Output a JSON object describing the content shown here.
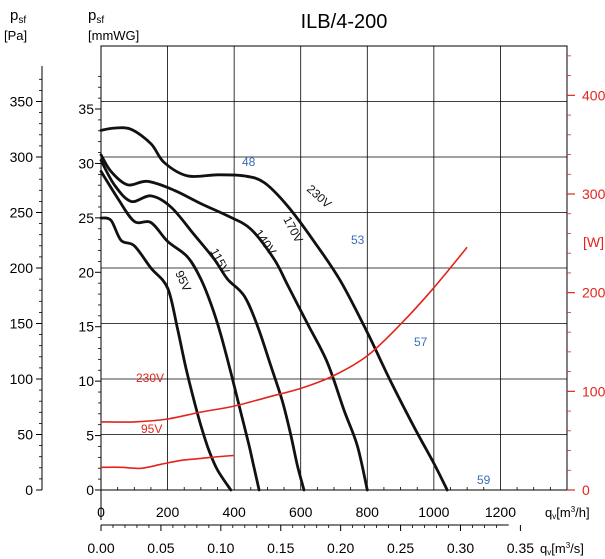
{
  "chart_data": {
    "type": "line",
    "title": "ILB/4-200",
    "axes": {
      "left_outer": {
        "label_main": "p",
        "label_sub": "sf",
        "unit": "[Pa]",
        "ticks": [
          0,
          50,
          100,
          150,
          200,
          250,
          300,
          350
        ],
        "range": [
          0,
          350
        ]
      },
      "left_inner": {
        "label_main": "p",
        "label_sub": "sf",
        "unit": "[mmWG]",
        "ticks": [
          0,
          5,
          10,
          15,
          20,
          25,
          30,
          35
        ]
      },
      "x_main": {
        "label_main": "q",
        "label_sub": "v",
        "unit_prefix": "[m",
        "unit_sup": "3",
        "unit_suffix": "/h]",
        "ticks": [
          0,
          200,
          400,
          600,
          800,
          1000,
          1200
        ],
        "range": [
          0,
          1200
        ]
      },
      "x_secondary": {
        "label_main": "q",
        "label_sub": "v",
        "unit_prefix": "[m",
        "unit_sup": "3",
        "unit_suffix": "/s]",
        "ticks": [
          "0.00",
          "0.05",
          "0.10",
          "0.15",
          "0.20",
          "0.25",
          "0.30",
          "0.35"
        ]
      },
      "right_power": {
        "unit": "[W]",
        "ticks": [
          0,
          100,
          200,
          300,
          400
        ]
      }
    },
    "pressure_series": [
      {
        "name": "230V",
        "points": [
          [
            0,
            324
          ],
          [
            40,
            326
          ],
          [
            90,
            325
          ],
          [
            150,
            312
          ],
          [
            190,
            295
          ],
          [
            260,
            283
          ],
          [
            350,
            284
          ],
          [
            430,
            283
          ],
          [
            490,
            277
          ],
          [
            560,
            256
          ],
          [
            640,
            224
          ],
          [
            720,
            188
          ],
          [
            800,
            142
          ],
          [
            870,
            98
          ],
          [
            940,
            57
          ],
          [
            1000,
            24
          ],
          [
            1040,
            0
          ]
        ]
      },
      {
        "name": "170V",
        "points": [
          [
            0,
            302
          ],
          [
            30,
            287
          ],
          [
            80,
            275
          ],
          [
            140,
            278
          ],
          [
            220,
            270
          ],
          [
            300,
            258
          ],
          [
            380,
            247
          ],
          [
            450,
            235
          ],
          [
            520,
            208
          ],
          [
            560,
            185
          ],
          [
            620,
            150
          ],
          [
            680,
            115
          ],
          [
            730,
            72
          ],
          [
            770,
            40
          ],
          [
            800,
            0
          ]
        ]
      },
      {
        "name": "140V",
        "points": [
          [
            0,
            297
          ],
          [
            40,
            275
          ],
          [
            90,
            260
          ],
          [
            150,
            265
          ],
          [
            210,
            255
          ],
          [
            280,
            230
          ],
          [
            340,
            208
          ],
          [
            380,
            190
          ],
          [
            430,
            175
          ],
          [
            470,
            148
          ],
          [
            510,
            112
          ],
          [
            545,
            80
          ],
          [
            570,
            50
          ],
          [
            590,
            22
          ],
          [
            610,
            0
          ]
        ]
      },
      {
        "name": "115V",
        "points": [
          [
            0,
            287
          ],
          [
            50,
            263
          ],
          [
            100,
            242
          ],
          [
            150,
            241
          ],
          [
            200,
            224
          ],
          [
            260,
            210
          ],
          [
            300,
            190
          ],
          [
            330,
            168
          ],
          [
            360,
            140
          ],
          [
            395,
            100
          ],
          [
            420,
            70
          ],
          [
            445,
            40
          ],
          [
            460,
            20
          ],
          [
            475,
            0
          ]
        ]
      },
      {
        "name": "95V",
        "points": [
          [
            0,
            245
          ],
          [
            30,
            243
          ],
          [
            60,
            225
          ],
          [
            100,
            220
          ],
          [
            150,
            200
          ],
          [
            200,
            182
          ],
          [
            230,
            145
          ],
          [
            255,
            110
          ],
          [
            280,
            80
          ],
          [
            300,
            58
          ],
          [
            325,
            35
          ],
          [
            350,
            18
          ],
          [
            390,
            0
          ]
        ]
      }
    ],
    "power_series": [
      {
        "name": "230V",
        "points": [
          [
            0,
            69
          ],
          [
            100,
            69
          ],
          [
            200,
            72
          ],
          [
            300,
            79
          ],
          [
            400,
            85
          ],
          [
            500,
            94
          ],
          [
            600,
            103
          ],
          [
            700,
            116
          ],
          [
            800,
            136
          ],
          [
            900,
            168
          ],
          [
            1000,
            205
          ],
          [
            1100,
            246
          ]
        ]
      },
      {
        "name": "95V",
        "points": [
          [
            0,
            23
          ],
          [
            60,
            23
          ],
          [
            120,
            22
          ],
          [
            180,
            26
          ],
          [
            240,
            30
          ],
          [
            300,
            32
          ],
          [
            360,
            34
          ],
          [
            400,
            35
          ]
        ]
      }
    ],
    "pressure_labels": [
      "230V",
      "170V",
      "140V",
      "115V",
      "95V"
    ],
    "power_labels": [
      "230V",
      "95V"
    ],
    "annotations": [
      "48",
      "53",
      "57",
      "59"
    ],
    "grid": true,
    "colors": {
      "pressure": "#111111",
      "power": "#e3241d",
      "annotation": "#3a6fb7",
      "axis": "#000000",
      "grid": "#000000"
    }
  }
}
